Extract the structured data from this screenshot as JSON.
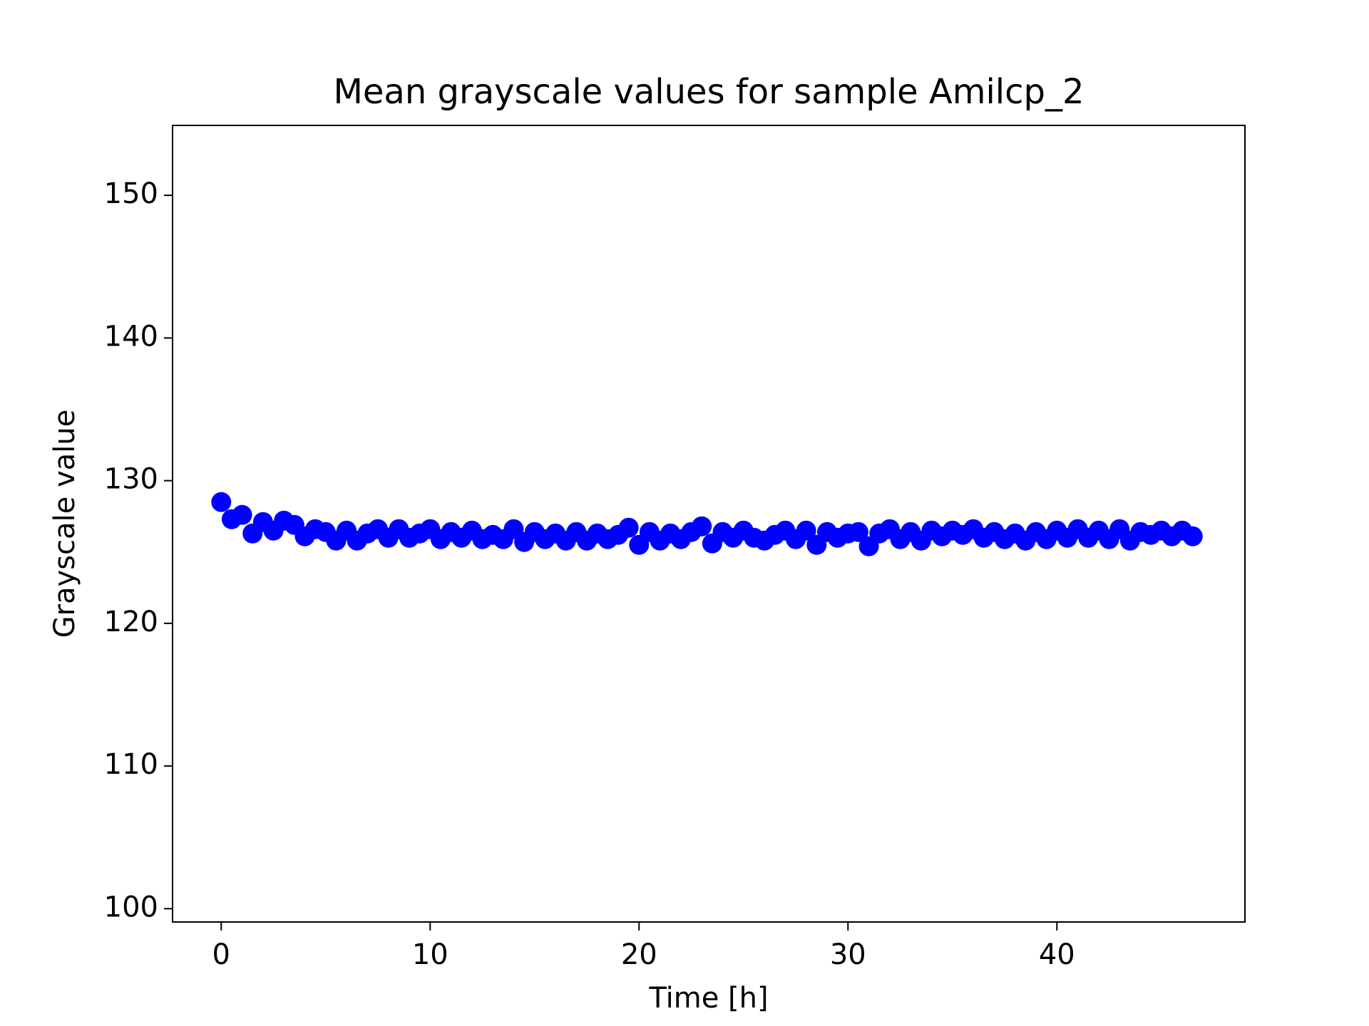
{
  "chart_data": {
    "type": "scatter",
    "title": "Mean grayscale values for sample Amilcp_2",
    "x_label": "Time [h]",
    "y_label": "Grayscale value",
    "xlim": [
      -2.33,
      49.0
    ],
    "ylim": [
      99.07,
      154.9
    ],
    "xticks": [
      0,
      10,
      20,
      30,
      40
    ],
    "yticks": [
      100,
      110,
      120,
      130,
      140,
      150
    ],
    "series": [
      {
        "name": "Amilcp_2",
        "color": "#0000ff",
        "x": [
          0,
          0.5,
          1,
          1.5,
          2,
          2.5,
          3,
          3.5,
          4,
          4.5,
          5,
          5.5,
          6,
          6.5,
          7,
          7.5,
          8,
          8.5,
          9,
          9.5,
          10,
          10.5,
          11,
          11.5,
          12,
          12.5,
          13,
          13.5,
          14,
          14.5,
          15,
          15.5,
          16,
          16.5,
          17,
          17.5,
          18,
          18.5,
          19,
          19.5,
          20,
          20.5,
          21,
          21.5,
          22,
          22.5,
          23,
          23.5,
          24,
          24.5,
          25,
          25.5,
          26,
          26.5,
          27,
          27.5,
          28,
          28.5,
          29,
          29.5,
          30,
          30.5,
          31,
          31.5,
          32,
          32.5,
          33,
          33.5,
          34,
          34.5,
          35,
          35.5,
          36,
          36.5,
          37,
          37.5,
          38,
          38.5,
          39,
          39.5,
          40,
          40.5,
          41,
          41.5,
          42,
          42.5,
          43,
          43.5,
          44,
          44.5,
          45,
          45.5,
          46,
          46.5
        ],
        "values": [
          128.5,
          127.3,
          127.6,
          126.3,
          127.1,
          126.5,
          127.2,
          126.9,
          126.1,
          126.6,
          126.4,
          125.8,
          126.5,
          125.8,
          126.3,
          126.6,
          126.0,
          126.6,
          126.0,
          126.3,
          126.6,
          125.9,
          126.4,
          126.0,
          126.5,
          125.9,
          126.2,
          125.9,
          126.6,
          125.7,
          126.4,
          125.9,
          126.3,
          125.8,
          126.4,
          125.8,
          126.3,
          125.9,
          126.2,
          126.7,
          125.5,
          126.4,
          125.8,
          126.3,
          125.9,
          126.4,
          126.8,
          125.6,
          126.4,
          126.0,
          126.5,
          126.0,
          125.8,
          126.2,
          126.5,
          125.9,
          126.5,
          125.5,
          126.4,
          126.0,
          126.3,
          126.4,
          125.4,
          126.3,
          126.6,
          125.9,
          126.4,
          125.8,
          126.5,
          126.1,
          126.5,
          126.2,
          126.6,
          126.0,
          126.4,
          125.9,
          126.3,
          125.8,
          126.4,
          125.9,
          126.5,
          126.0,
          126.6,
          126.0,
          126.5,
          125.9,
          126.6,
          125.8,
          126.4,
          126.2,
          126.5,
          126.1,
          126.5,
          126.1
        ]
      }
    ]
  }
}
